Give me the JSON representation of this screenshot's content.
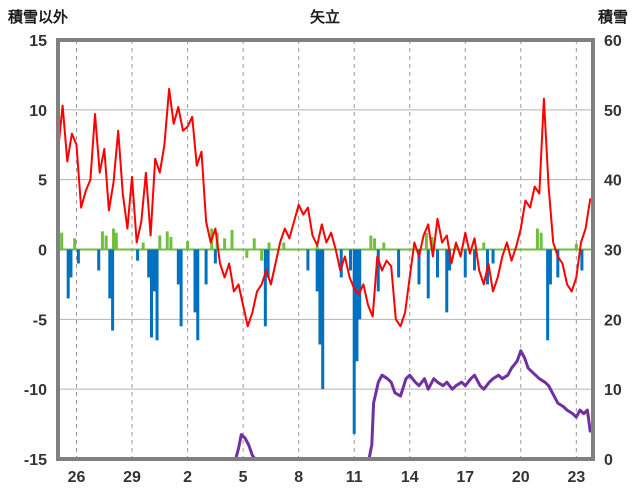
{
  "header": {
    "left_axis_title": "積雪以外",
    "chart_title": "矢立",
    "right_axis_title": "積雪"
  },
  "chart_data": {
    "type": "line",
    "title": "矢立",
    "left_axis": {
      "label": "積雪以外",
      "min": -15,
      "max": 15,
      "tick_step": 5
    },
    "right_axis": {
      "label": "積雪",
      "min": 0,
      "max": 60,
      "tick_step": 10
    },
    "x_axis": {
      "min": 25,
      "max": 53.9,
      "ticks": [
        {
          "day": 26,
          "label": "26"
        },
        {
          "day": 29,
          "label": "29"
        },
        {
          "day": 32,
          "label": "2"
        },
        {
          "day": 35,
          "label": "5"
        },
        {
          "day": 38,
          "label": "8"
        },
        {
          "day": 41,
          "label": "11"
        },
        {
          "day": 44,
          "label": "14"
        },
        {
          "day": 47,
          "label": "17"
        },
        {
          "day": 50,
          "label": "20"
        },
        {
          "day": 53,
          "label": "23"
        }
      ]
    },
    "grid": {
      "h_color": "#b3b3b3",
      "v_color": "#999999",
      "v_dash": "4,4"
    },
    "frame_color": "#808080",
    "text_color": "#333333",
    "series": [
      {
        "name": "green-bars",
        "type": "bar",
        "axis": "left",
        "color": "#70bf41",
        "baseline_line": true,
        "points": [
          [
            25.2,
            1.2
          ],
          [
            25.9,
            0.8
          ],
          [
            27.4,
            1.3
          ],
          [
            27.6,
            1.0
          ],
          [
            28.0,
            1.5
          ],
          [
            28.15,
            1.2
          ],
          [
            29.6,
            0.5
          ],
          [
            30.5,
            1.0
          ],
          [
            30.9,
            1.3
          ],
          [
            31.1,
            0.9
          ],
          [
            32.0,
            0.6
          ],
          [
            33.3,
            1.5
          ],
          [
            33.6,
            1.2
          ],
          [
            34.0,
            0.8
          ],
          [
            34.4,
            1.4
          ],
          [
            35.2,
            -0.6
          ],
          [
            35.6,
            0.8
          ],
          [
            36.0,
            -0.8
          ],
          [
            36.4,
            0.5
          ],
          [
            37.2,
            0.5
          ],
          [
            39.0,
            0.3
          ],
          [
            41.9,
            1.0
          ],
          [
            42.1,
            0.8
          ],
          [
            42.6,
            0.5
          ],
          [
            44.9,
            1.2
          ],
          [
            45.2,
            0.9
          ],
          [
            46.5,
            0.4
          ],
          [
            48.0,
            0.5
          ],
          [
            50.9,
            1.5
          ],
          [
            51.1,
            1.2
          ],
          [
            53.0,
            0.4
          ]
        ]
      },
      {
        "name": "blue-bars",
        "type": "bar",
        "axis": "left",
        "color": "#0070c0",
        "points": [
          [
            25.55,
            -3.5
          ],
          [
            25.7,
            -2.0
          ],
          [
            26.1,
            -1.0
          ],
          [
            27.2,
            -1.5
          ],
          [
            27.8,
            -3.5
          ],
          [
            27.95,
            -5.8
          ],
          [
            29.3,
            -0.8
          ],
          [
            29.9,
            -2.0
          ],
          [
            30.05,
            -6.3
          ],
          [
            30.2,
            -3.0
          ],
          [
            30.35,
            -6.5
          ],
          [
            31.5,
            -2.5
          ],
          [
            31.65,
            -5.5
          ],
          [
            32.4,
            -4.5
          ],
          [
            32.55,
            -6.5
          ],
          [
            33.0,
            -2.5
          ],
          [
            33.5,
            -1.0
          ],
          [
            36.2,
            -5.5
          ],
          [
            36.35,
            -2.0
          ],
          [
            38.5,
            -1.5
          ],
          [
            39.0,
            -3.0
          ],
          [
            39.15,
            -6.8
          ],
          [
            39.3,
            -10.0
          ],
          [
            40.3,
            -2.0
          ],
          [
            40.8,
            -1.5
          ],
          [
            41.0,
            -13.2
          ],
          [
            41.15,
            -8.0
          ],
          [
            41.3,
            -5.0
          ],
          [
            42.3,
            -3.0
          ],
          [
            43.4,
            -2.0
          ],
          [
            44.5,
            -2.5
          ],
          [
            45.0,
            -3.5
          ],
          [
            45.5,
            -2.0
          ],
          [
            46.0,
            -4.5
          ],
          [
            46.15,
            -1.5
          ],
          [
            47.0,
            -2.0
          ],
          [
            47.5,
            -1.5
          ],
          [
            48.2,
            -2.5
          ],
          [
            48.5,
            -1.0
          ],
          [
            51.45,
            -6.5
          ],
          [
            51.6,
            -2.5
          ],
          [
            52.0,
            -2.0
          ],
          [
            53.3,
            -1.5
          ]
        ]
      },
      {
        "name": "red-line",
        "type": "line",
        "axis": "left",
        "color": "#ff0000",
        "width": 2,
        "x_start": 25,
        "x_step": 0.25,
        "values": [
          7.0,
          10.3,
          6.3,
          8.3,
          7.5,
          3.0,
          4.2,
          5.0,
          9.7,
          5.5,
          7.2,
          2.8,
          4.8,
          8.5,
          4.0,
          1.5,
          5.2,
          0.5,
          2.0,
          5.5,
          1.0,
          6.5,
          5.5,
          7.5,
          11.5,
          9.0,
          10.2,
          8.5,
          8.8,
          9.5,
          6.0,
          7.0,
          2.0,
          0.5,
          1.5,
          -1.0,
          -2.0,
          -1.0,
          -3.0,
          -2.5,
          -4.0,
          -5.5,
          -4.5,
          -3.0,
          -2.5,
          -1.5,
          -2.5,
          -1.0,
          0.5,
          1.5,
          0.8,
          2.0,
          3.2,
          2.5,
          3.0,
          1.0,
          0.3,
          1.8,
          0.5,
          1.2,
          0.0,
          -1.5,
          -0.5,
          -2.0,
          -2.8,
          -3.2,
          -2.5,
          -4.0,
          -4.8,
          -0.5,
          -1.5,
          -0.8,
          -1.2,
          -5.0,
          -5.5,
          -4.5,
          -2.0,
          0.5,
          -0.5,
          1.0,
          1.8,
          -0.5,
          2.2,
          0.5,
          1.0,
          -1.0,
          0.5,
          -0.5,
          1.2,
          -0.3,
          0.8,
          -1.5,
          -2.5,
          -1.0,
          -3.0,
          -2.0,
          -0.5,
          0.5,
          -0.8,
          0.2,
          1.5,
          3.5,
          3.0,
          4.5,
          4.0,
          10.8,
          4.5,
          0.5,
          -0.5,
          -1.0,
          -2.5,
          -3.0,
          -2.0,
          0.5,
          1.5,
          3.6
        ]
      },
      {
        "name": "purple-line",
        "type": "line",
        "axis": "right",
        "color": "#7030a0",
        "width": 3,
        "points": [
          [
            34.3,
            0
          ],
          [
            34.6,
            0
          ],
          [
            34.75,
            1.5
          ],
          [
            34.9,
            3.5
          ],
          [
            35.1,
            3.0
          ],
          [
            35.3,
            2.0
          ],
          [
            35.5,
            0.5
          ],
          [
            35.65,
            0
          ],
          [
            41.8,
            0
          ],
          [
            41.95,
            2
          ],
          [
            42.05,
            8
          ],
          [
            42.3,
            11
          ],
          [
            42.5,
            12
          ],
          [
            42.8,
            11.5
          ],
          [
            43.0,
            11
          ],
          [
            43.2,
            9.5
          ],
          [
            43.5,
            9
          ],
          [
            43.8,
            11.5
          ],
          [
            44.0,
            12
          ],
          [
            44.3,
            11
          ],
          [
            44.5,
            10.5
          ],
          [
            44.8,
            11.5
          ],
          [
            45.0,
            10
          ],
          [
            45.3,
            11.5
          ],
          [
            45.5,
            11
          ],
          [
            45.8,
            10.5
          ],
          [
            46.0,
            11
          ],
          [
            46.3,
            10
          ],
          [
            46.5,
            10.5
          ],
          [
            46.8,
            11
          ],
          [
            47.0,
            10.5
          ],
          [
            47.3,
            11.5
          ],
          [
            47.5,
            12
          ],
          [
            47.8,
            10.5
          ],
          [
            48.0,
            10
          ],
          [
            48.3,
            11
          ],
          [
            48.5,
            11.5
          ],
          [
            48.8,
            12
          ],
          [
            49.0,
            11.5
          ],
          [
            49.3,
            12
          ],
          [
            49.5,
            13
          ],
          [
            49.8,
            14
          ],
          [
            50.0,
            15.5
          ],
          [
            50.2,
            14.5
          ],
          [
            50.4,
            13
          ],
          [
            50.6,
            12.5
          ],
          [
            50.8,
            12
          ],
          [
            51.0,
            11.5
          ],
          [
            51.3,
            11
          ],
          [
            51.5,
            10.5
          ],
          [
            51.8,
            9
          ],
          [
            52.0,
            8
          ],
          [
            52.3,
            7.5
          ],
          [
            52.5,
            7
          ],
          [
            52.8,
            6.5
          ],
          [
            53.0,
            6
          ],
          [
            53.2,
            7
          ],
          [
            53.4,
            6.5
          ],
          [
            53.6,
            7
          ],
          [
            53.75,
            4
          ]
        ]
      }
    ]
  }
}
